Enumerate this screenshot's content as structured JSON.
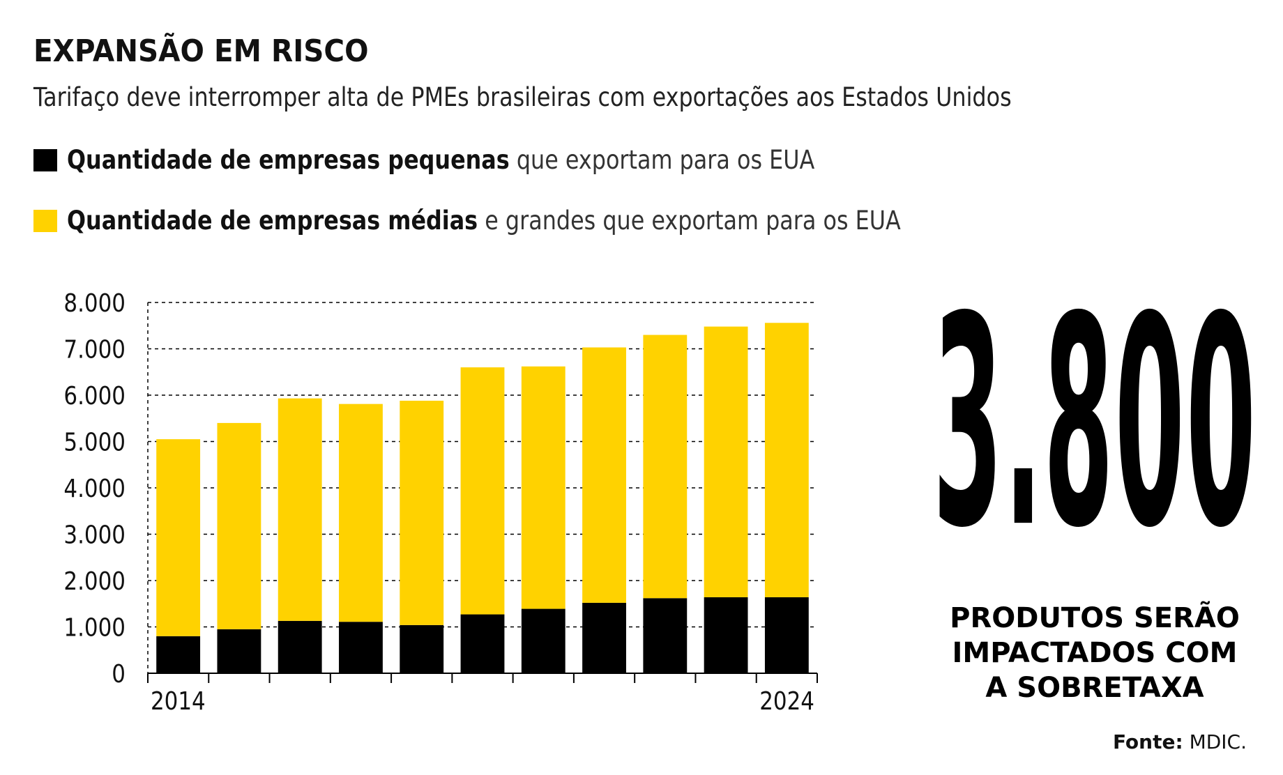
{
  "header": {
    "title": "EXPANSÃO EM RISCO",
    "subtitle": "Tarifaço deve interromper alta de PMEs brasileiras com exportações aos Estados Unidos"
  },
  "legend": {
    "small": {
      "bold": "Quantidade de empresas pequenas",
      "rest": " que exportam para os EUA",
      "color": "#000000"
    },
    "medium": {
      "bold": "Quantidade de empresas médias",
      "rest": " e grandes que exportam para os EUA",
      "color": "#FFD200"
    }
  },
  "highlight": {
    "number": "3.800",
    "caption_lines": [
      "PRODUTOS SERÃO",
      "IMPACTADOS COM",
      "A SOBRETAXA"
    ]
  },
  "source": {
    "label": "Fonte:",
    "value": " MDIC."
  },
  "chart_data": {
    "type": "bar",
    "stacked": true,
    "x": [
      2014,
      2015,
      2016,
      2017,
      2018,
      2019,
      2020,
      2021,
      2022,
      2023,
      2024
    ],
    "x_tick_labels": [
      "2014",
      "",
      "",
      "",
      "",
      "",
      "",
      "",
      "",
      "",
      "2024"
    ],
    "series": [
      {
        "name": "Quantidade de empresas pequenas",
        "color": "#000000",
        "values": [
          800,
          950,
          1130,
          1110,
          1040,
          1270,
          1390,
          1520,
          1620,
          1640,
          1640
        ]
      },
      {
        "name": "Quantidade de empresas médias e grandes",
        "color": "#FFD200",
        "values": [
          4250,
          4450,
          4800,
          4700,
          4840,
          5330,
          5230,
          5510,
          5680,
          5840,
          5920
        ]
      }
    ],
    "ylim": [
      0,
      8000
    ],
    "y_ticks": [
      0,
      1000,
      2000,
      3000,
      4000,
      5000,
      6000,
      7000,
      8000
    ],
    "y_tick_labels": [
      "0",
      "1.000",
      "2.000",
      "3.000",
      "4.000",
      "5.000",
      "6.000",
      "7.000",
      "8.000"
    ],
    "grid": "horizontal dashed",
    "xlabel": "",
    "ylabel": ""
  }
}
